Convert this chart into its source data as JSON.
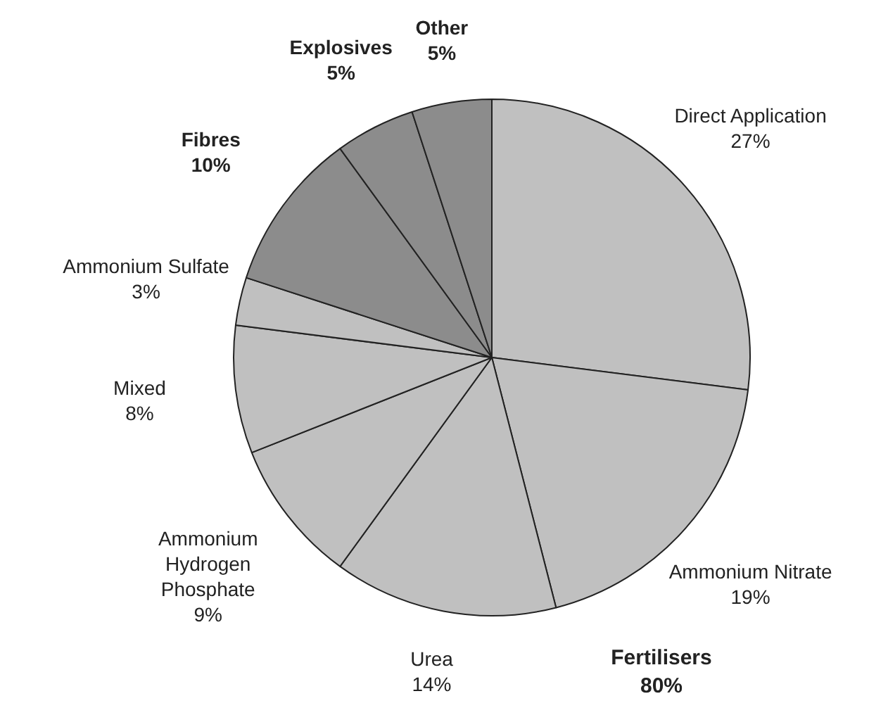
{
  "chart_data": {
    "type": "pie",
    "categories": [
      "Direct Application",
      "Ammonium Nitrate",
      "Urea",
      "Ammonium\nHydrogen\nPhosphate",
      "Mixed",
      "Ammonium Sulfate",
      "Fibres",
      "Explosives",
      "Other"
    ],
    "values": [
      27,
      19,
      14,
      9,
      8,
      3,
      10,
      5,
      5
    ],
    "value_labels": [
      "27%",
      "19%",
      "14%",
      "9%",
      "8%",
      "3%",
      "10%",
      "5%",
      "5%"
    ],
    "colors": [
      "#c0c0c0",
      "#c0c0c0",
      "#c0c0c0",
      "#c0c0c0",
      "#c0c0c0",
      "#c0c0c0",
      "#8c8c8c",
      "#8c8c8c",
      "#8c8c8c"
    ],
    "annotations": [
      "Fertilisers\n80%"
    ],
    "legend": false
  }
}
